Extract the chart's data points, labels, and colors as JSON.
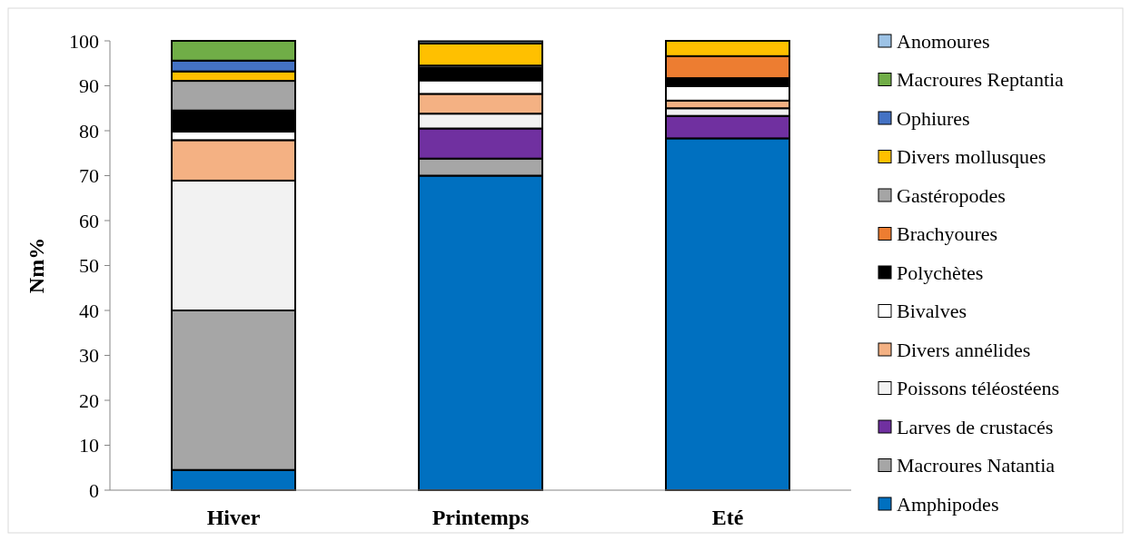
{
  "chart_data": {
    "type": "bar",
    "stacked": true,
    "ylabel": "Nm%",
    "categories": [
      "Hiver",
      "Printemps",
      "Eté"
    ],
    "ylim": [
      0,
      100
    ],
    "yticks": [
      0,
      10,
      20,
      30,
      40,
      50,
      60,
      70,
      80,
      90,
      100
    ],
    "grid": false,
    "legend": "right",
    "series": [
      {
        "name": "Amphipodes",
        "color": "#0070c0",
        "values": [
          4.5,
          70,
          78.3
        ]
      },
      {
        "name": "Macroures Natantia",
        "color": "#a6a6a6",
        "values": [
          35.5,
          3.8,
          0
        ]
      },
      {
        "name": "Larves de crustacés",
        "color": "#7030a0",
        "values": [
          0,
          6.7,
          5.0
        ]
      },
      {
        "name": "Poissons téléostéens",
        "color": "#f2f2f2",
        "values": [
          28.9,
          3.3,
          1.7
        ]
      },
      {
        "name": "Divers annélides",
        "color": "#f4b183",
        "values": [
          9.0,
          4.4,
          1.7
        ]
      },
      {
        "name": "Bivalves",
        "color": "#ffffff",
        "values": [
          1.9,
          3.0,
          3.2
        ]
      },
      {
        "name": "Polychètes",
        "color": "#000000",
        "values": [
          4.7,
          2.8,
          1.8
        ]
      },
      {
        "name": "Brachyoures",
        "color": "#ed7d31",
        "values": [
          0,
          0,
          4.9
        ]
      },
      {
        "name": "Gastéropodes",
        "color": "#a5a5a5",
        "values": [
          6.6,
          0.5,
          0
        ]
      },
      {
        "name": "Divers mollusques",
        "color": "#ffc000",
        "values": [
          2.1,
          4.9,
          3.4
        ]
      },
      {
        "name": "Ophiures",
        "color": "#4472c4",
        "values": [
          2.4,
          0,
          0
        ]
      },
      {
        "name": "Macroures Reptantia",
        "color": "#70ad47",
        "values": [
          4.4,
          0,
          0
        ]
      },
      {
        "name": "Anomoures",
        "color": "#9dc3e6",
        "values": [
          0,
          0.5,
          0
        ]
      }
    ]
  }
}
